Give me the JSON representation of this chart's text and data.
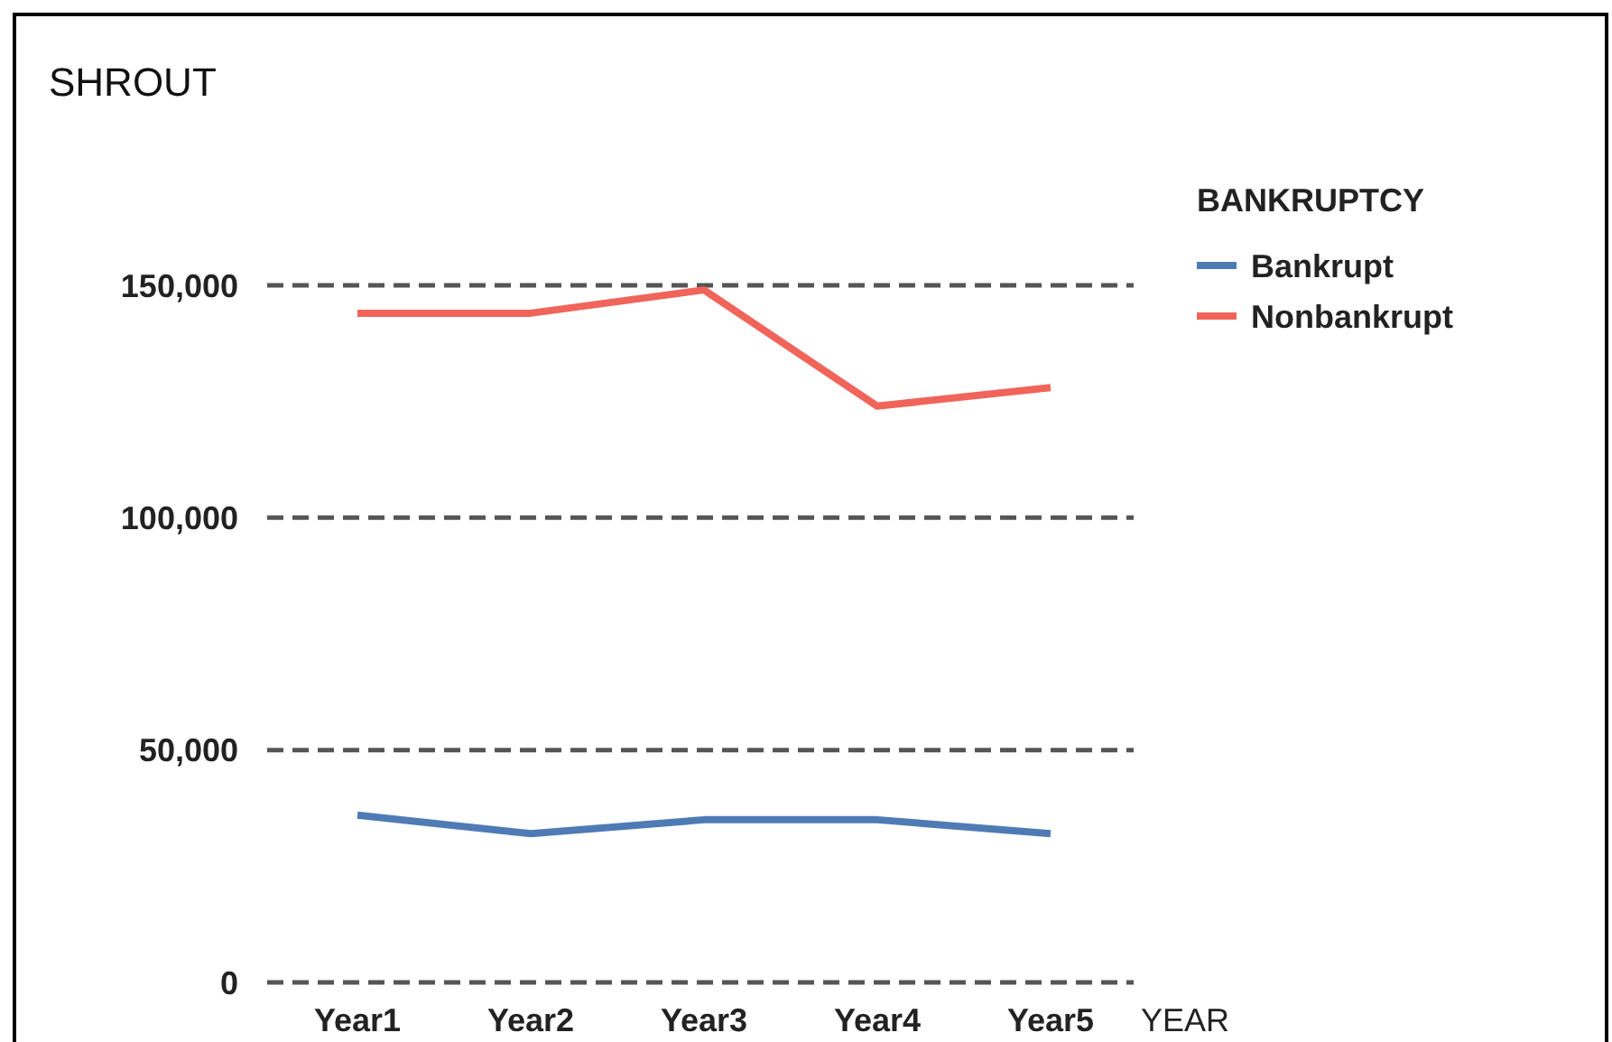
{
  "chart_data": {
    "type": "line",
    "ylabel": "SHROUT",
    "xlabel": "YEAR",
    "legend_title": "BANKRUPTCY",
    "categories": [
      "Year1",
      "Year2",
      "Year3",
      "Year4",
      "Year5"
    ],
    "series": [
      {
        "name": "Bankrupt",
        "color": "#4f7bb5",
        "values": [
          36000,
          32000,
          35000,
          35000,
          32000
        ]
      },
      {
        "name": "Nonbankrupt",
        "color": "#f0645a",
        "values": [
          144000,
          144000,
          149000,
          124000,
          128000
        ]
      }
    ],
    "ylim": [
      0,
      150000
    ],
    "yticks": [
      0,
      {
        "value": 50000,
        "label": "50,000"
      },
      {
        "value": 100000,
        "label": "100,000"
      },
      {
        "value": 150000,
        "label": "150,000"
      }
    ],
    "grid": "y",
    "legend": "top right",
    "line_style": "solid",
    "marker": "none"
  }
}
